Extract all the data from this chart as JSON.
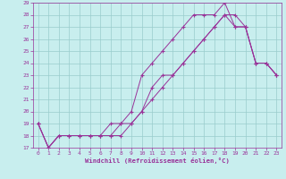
{
  "xlabel": "Windchill (Refroidissement éolien,°C)",
  "background_color": "#c8eeee",
  "grid_color": "#99cccc",
  "line_color": "#993399",
  "xlim": [
    -0.5,
    23.5
  ],
  "ylim": [
    17,
    29
  ],
  "xticks": [
    0,
    1,
    2,
    3,
    4,
    5,
    6,
    7,
    8,
    9,
    10,
    11,
    12,
    13,
    14,
    15,
    16,
    17,
    18,
    19,
    20,
    21,
    22,
    23
  ],
  "yticks": [
    17,
    18,
    19,
    20,
    21,
    22,
    23,
    24,
    25,
    26,
    27,
    28,
    29
  ],
  "line1_x": [
    0,
    1,
    2,
    3,
    4,
    5,
    6,
    7,
    8,
    9,
    10,
    11,
    12,
    13,
    14,
    15,
    16,
    17,
    18,
    19,
    20,
    21,
    22,
    23
  ],
  "line1_y": [
    19,
    17,
    18,
    18,
    18,
    18,
    18,
    18,
    18,
    19,
    20,
    21,
    22,
    23,
    24,
    25,
    26,
    27,
    28,
    28,
    27,
    24,
    24,
    23
  ],
  "line2_x": [
    0,
    1,
    2,
    3,
    4,
    5,
    6,
    7,
    8,
    9,
    10,
    11,
    12,
    13,
    14,
    15,
    16,
    17,
    18,
    19,
    20,
    21,
    22,
    23
  ],
  "line2_y": [
    19,
    17,
    18,
    18,
    18,
    18,
    18,
    19,
    19,
    20,
    23,
    24,
    25,
    26,
    27,
    28,
    28,
    28,
    29,
    27,
    27,
    24,
    24,
    23
  ],
  "line3_x": [
    0,
    1,
    2,
    3,
    4,
    5,
    6,
    7,
    8,
    9,
    10,
    11,
    12,
    13,
    14,
    15,
    16,
    17,
    18,
    19,
    20,
    21,
    22,
    23
  ],
  "line3_y": [
    19,
    17,
    18,
    18,
    18,
    18,
    18,
    18,
    19,
    19,
    20,
    22,
    23,
    23,
    24,
    25,
    26,
    27,
    28,
    27,
    27,
    24,
    24,
    23
  ]
}
